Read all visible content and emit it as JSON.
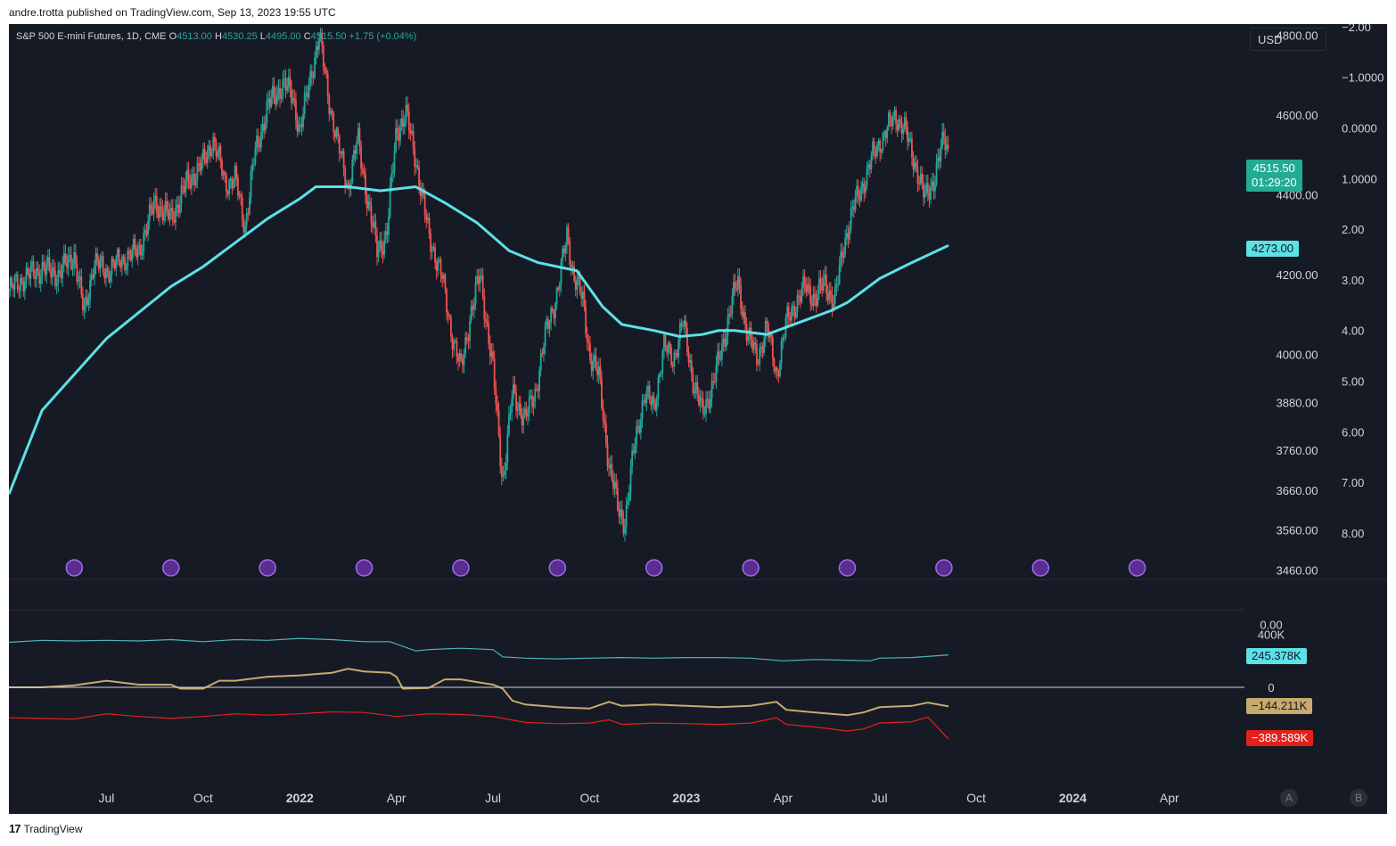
{
  "header": {
    "published": "andre.trotta published on TradingView.com, Sep 13, 2023 19:55 UTC"
  },
  "legend": {
    "symbol": "S&P 500 E-mini Futures, 1D, CME",
    "open_label": "O",
    "open": "4513.00",
    "high_label": "H",
    "high": "4530.25",
    "low_label": "L",
    "low": "4495.00",
    "close_label": "C",
    "close": "4515.50",
    "change": "+1.75 (+0.04%)"
  },
  "currency_button": "USD",
  "price_tag": {
    "price": "4515.50",
    "countdown": "01:29:20"
  },
  "ma_tag": "4273.00",
  "indicator_tags": {
    "cyan": "245.378K",
    "gold": "−144.211K",
    "red": "−389.589K"
  },
  "buttons": {
    "a": "A",
    "b": "B"
  },
  "footer": {
    "logo": "17",
    "brand": "TradingView"
  },
  "colors": {
    "background": "#161a25",
    "up": "#26a69a",
    "down": "#ef5350",
    "ma": "#5ce1e6",
    "cyan_series": "#4fb5b8",
    "gold_series": "#c8aa6e",
    "red_series": "#e3211b"
  },
  "chart_data": [
    {
      "type": "candlestick",
      "title": "S&P 500 E-mini Futures, 1D, CME",
      "x_labels": [
        "Jul",
        "Oct",
        "2022",
        "Apr",
        "Jul",
        "Oct",
        "2023",
        "Apr",
        "Jul",
        "Oct",
        "2024",
        "Apr"
      ],
      "x_positions_months": [
        2,
        5,
        8,
        11,
        14,
        17,
        20,
        23,
        26,
        29,
        32,
        35
      ],
      "x_range_months": [
        -1.03,
        37.33
      ],
      "price_ticks": [
        "4800.00",
        "4600.00",
        "4400.00",
        "4200.00",
        "4000.00",
        "3880.00",
        "3760.00",
        "3660.00",
        "3560.00",
        "3460.00"
      ],
      "price_tick_values": [
        4800,
        4600,
        4400,
        4200,
        4000,
        3880,
        3760,
        3660,
        3560,
        3460
      ],
      "secondary_ticks": [
        "−2.00",
        "−1.0000",
        "0.0000",
        "1.0000",
        "2.00",
        "3.00",
        "4.00",
        "5.00",
        "6.00",
        "7.00",
        "8.00"
      ],
      "secondary_tick_values": [
        -2,
        -1,
        0,
        1,
        2,
        3,
        4,
        5,
        6,
        7,
        8
      ],
      "close_path": [
        [
          -1.03,
          4160
        ],
        [
          -0.6,
          4190
        ],
        [
          0,
          4215
        ],
        [
          0.5,
          4200
        ],
        [
          1,
          4250
        ],
        [
          1.3,
          4100
        ],
        [
          1.6,
          4230
        ],
        [
          2,
          4210
        ],
        [
          2.5,
          4240
        ],
        [
          3,
          4260
        ],
        [
          3.5,
          4380
        ],
        [
          4,
          4340
        ],
        [
          4.5,
          4430
        ],
        [
          5,
          4480
        ],
        [
          5.3,
          4540
        ],
        [
          5.7,
          4430
        ],
        [
          6,
          4440
        ],
        [
          6.3,
          4320
        ],
        [
          6.6,
          4500
        ],
        [
          7,
          4620
        ],
        [
          7.5,
          4680
        ],
        [
          7.8,
          4640
        ],
        [
          8,
          4560
        ],
        [
          8.4,
          4720
        ],
        [
          8.6,
          4800
        ],
        [
          8.9,
          4640
        ],
        [
          9.2,
          4520
        ],
        [
          9.5,
          4420
        ],
        [
          9.8,
          4540
        ],
        [
          10.1,
          4390
        ],
        [
          10.4,
          4260
        ],
        [
          10.7,
          4300
        ],
        [
          11,
          4560
        ],
        [
          11.3,
          4600
        ],
        [
          11.6,
          4490
        ],
        [
          12,
          4300
        ],
        [
          12.4,
          4200
        ],
        [
          12.7,
          4060
        ],
        [
          13,
          3960
        ],
        [
          13.3,
          4100
        ],
        [
          13.6,
          4200
        ],
        [
          14,
          3960
        ],
        [
          14.3,
          3680
        ],
        [
          14.6,
          3900
        ],
        [
          15,
          3840
        ],
        [
          15.3,
          3900
        ],
        [
          15.6,
          4040
        ],
        [
          16,
          4160
        ],
        [
          16.3,
          4300
        ],
        [
          16.5,
          4200
        ],
        [
          16.8,
          4130
        ],
        [
          17,
          4000
        ],
        [
          17.3,
          3940
        ],
        [
          17.6,
          3720
        ],
        [
          17.9,
          3610
        ],
        [
          18.1,
          3580
        ],
        [
          18.4,
          3780
        ],
        [
          18.7,
          3900
        ],
        [
          19,
          3870
        ],
        [
          19.3,
          4020
        ],
        [
          19.6,
          3990
        ],
        [
          19.9,
          4080
        ],
        [
          20.2,
          3940
        ],
        [
          20.5,
          3850
        ],
        [
          20.8,
          3920
        ],
        [
          21.1,
          4010
        ],
        [
          21.4,
          4130
        ],
        [
          21.6,
          4180
        ],
        [
          21.9,
          4050
        ],
        [
          22.2,
          3990
        ],
        [
          22.5,
          4070
        ],
        [
          22.8,
          3950
        ],
        [
          23.1,
          4080
        ],
        [
          23.4,
          4130
        ],
        [
          23.7,
          4170
        ],
        [
          24,
          4140
        ],
        [
          24.3,
          4180
        ],
        [
          24.6,
          4130
        ],
        [
          24.9,
          4280
        ],
        [
          25.2,
          4370
        ],
        [
          25.5,
          4430
        ],
        [
          25.8,
          4500
        ],
        [
          26.2,
          4560
        ],
        [
          26.5,
          4600
        ],
        [
          26.8,
          4560
        ],
        [
          27.1,
          4480
        ],
        [
          27.4,
          4390
        ],
        [
          27.7,
          4440
        ],
        [
          28,
          4540
        ],
        [
          28.14,
          4515.5
        ]
      ],
      "close": 4515.5,
      "moving_average": {
        "last_value": 4273.0,
        "path": [
          [
            -1.03,
            3650
          ],
          [
            0,
            3860
          ],
          [
            2,
            4040
          ],
          [
            4,
            4170
          ],
          [
            5,
            4220
          ],
          [
            6,
            4280
          ],
          [
            7,
            4340
          ],
          [
            8,
            4390
          ],
          [
            8.5,
            4420
          ],
          [
            9.5,
            4420
          ],
          [
            10.5,
            4410
          ],
          [
            11.6,
            4420
          ],
          [
            12.5,
            4380
          ],
          [
            13.5,
            4330
          ],
          [
            14.5,
            4260
          ],
          [
            15.4,
            4230
          ],
          [
            16,
            4220
          ],
          [
            16.6,
            4210
          ],
          [
            17.4,
            4120
          ],
          [
            18,
            4075
          ],
          [
            19,
            4060
          ],
          [
            19.8,
            4045
          ],
          [
            20.5,
            4050
          ],
          [
            21,
            4060
          ],
          [
            21.5,
            4060
          ],
          [
            22.5,
            4050
          ],
          [
            23.5,
            4080
          ],
          [
            24.5,
            4110
          ],
          [
            25,
            4130
          ],
          [
            25.5,
            4160
          ],
          [
            26,
            4190
          ],
          [
            27,
            4230
          ],
          [
            28.14,
            4273
          ]
        ]
      }
    },
    {
      "type": "line",
      "y_ticks": [
        "0.00",
        "400K",
        "0"
      ],
      "y_tick_values": [
        475,
        400,
        0
      ],
      "y_unit": "K",
      "series": [
        {
          "path": [
            [
              -1.03,
              340
            ],
            [
              0,
              355
            ],
            [
              1,
              350
            ],
            [
              2,
              355
            ],
            [
              3,
              350
            ],
            [
              4,
              360
            ],
            [
              5,
              345
            ],
            [
              6,
              360
            ],
            [
              7,
              355
            ],
            [
              8,
              370
            ],
            [
              9,
              360
            ],
            [
              10,
              345
            ],
            [
              10.8,
              345
            ],
            [
              11.6,
              275
            ],
            [
              12,
              285
            ],
            [
              13,
              295
            ],
            [
              14,
              285
            ],
            [
              14.3,
              230
            ],
            [
              15,
              220
            ],
            [
              16,
              215
            ],
            [
              17,
              220
            ],
            [
              18,
              225
            ],
            [
              19,
              220
            ],
            [
              20,
              225
            ],
            [
              21,
              225
            ],
            [
              22,
              220
            ],
            [
              23,
              200
            ],
            [
              24,
              210
            ],
            [
              25,
              205
            ],
            [
              25.7,
              200
            ],
            [
              26,
              220
            ],
            [
              27,
              225
            ],
            [
              28.14,
              245.378
            ]
          ],
          "last_value": 245.378
        },
        {
          "path": [
            [
              -1.03,
              0
            ],
            [
              0,
              0
            ],
            [
              1,
              15
            ],
            [
              2,
              50
            ],
            [
              3,
              20
            ],
            [
              4,
              20
            ],
            [
              4.3,
              -10
            ],
            [
              5,
              -10
            ],
            [
              5.5,
              50
            ],
            [
              6,
              50
            ],
            [
              7,
              80
            ],
            [
              8,
              90
            ],
            [
              8.5,
              100
            ],
            [
              9,
              110
            ],
            [
              9.5,
              140
            ],
            [
              10,
              120
            ],
            [
              10.8,
              110
            ],
            [
              11,
              80
            ],
            [
              11.2,
              -10
            ],
            [
              12,
              -5
            ],
            [
              12.5,
              60
            ],
            [
              13,
              60
            ],
            [
              13.5,
              40
            ],
            [
              14,
              20
            ],
            [
              14.3,
              -10
            ],
            [
              14.6,
              -100
            ],
            [
              15,
              -130
            ],
            [
              16,
              -150
            ],
            [
              17,
              -160
            ],
            [
              17.6,
              -110
            ],
            [
              18,
              -140
            ],
            [
              19,
              -130
            ],
            [
              20,
              -140
            ],
            [
              21,
              -150
            ],
            [
              22,
              -140
            ],
            [
              22.8,
              -110
            ],
            [
              23.1,
              -170
            ],
            [
              24,
              -190
            ],
            [
              25,
              -210
            ],
            [
              25.5,
              -190
            ],
            [
              26,
              -150
            ],
            [
              27,
              -140
            ],
            [
              27.5,
              -115
            ],
            [
              28.14,
              -144.211
            ]
          ],
          "last_value": -144.211
        },
        {
          "path": [
            [
              -1.03,
              -230
            ],
            [
              0,
              -235
            ],
            [
              1,
              -240
            ],
            [
              2,
              -200
            ],
            [
              3,
              -220
            ],
            [
              4,
              -235
            ],
            [
              5,
              -220
            ],
            [
              6,
              -200
            ],
            [
              7,
              -210
            ],
            [
              8,
              -200
            ],
            [
              9,
              -185
            ],
            [
              10,
              -190
            ],
            [
              11,
              -220
            ],
            [
              12,
              -200
            ],
            [
              13,
              -205
            ],
            [
              14,
              -220
            ],
            [
              15,
              -265
            ],
            [
              16,
              -275
            ],
            [
              17,
              -270
            ],
            [
              17.6,
              -245
            ],
            [
              18,
              -280
            ],
            [
              19,
              -270
            ],
            [
              20,
              -275
            ],
            [
              21,
              -280
            ],
            [
              22,
              -270
            ],
            [
              22.8,
              -230
            ],
            [
              23.1,
              -280
            ],
            [
              24,
              -300
            ],
            [
              25,
              -330
            ],
            [
              25.5,
              -315
            ],
            [
              26,
              -270
            ],
            [
              27,
              -260
            ],
            [
              27.5,
              -225
            ],
            [
              28.14,
              -389.589
            ]
          ],
          "last_value": -389.589
        }
      ]
    }
  ]
}
